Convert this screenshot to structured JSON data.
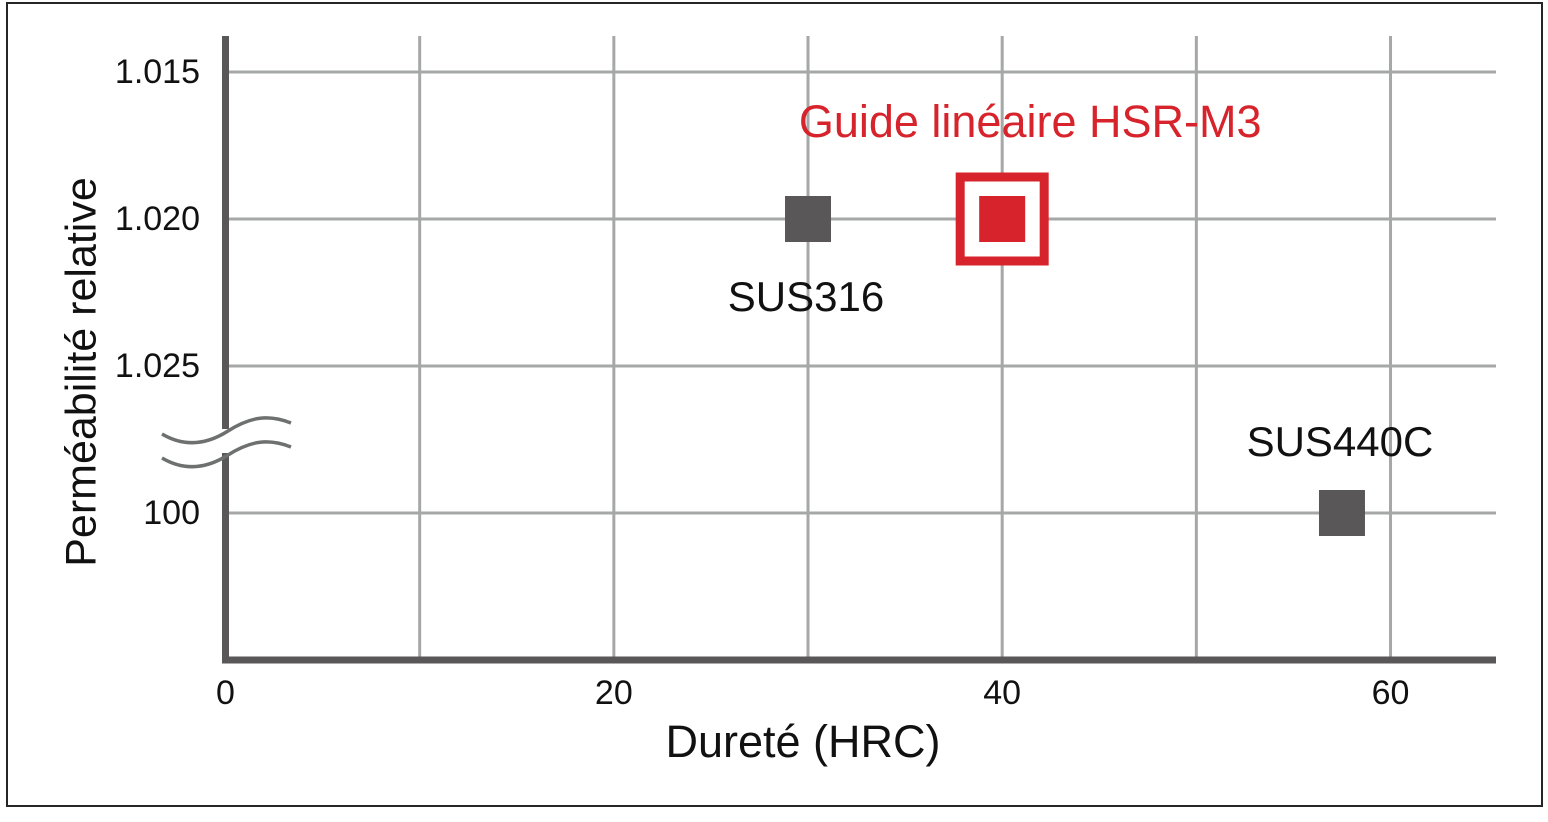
{
  "figure": {
    "background": "#ffffff",
    "border_color": "#262626"
  },
  "chart_data": {
    "type": "scatter",
    "title": "",
    "xlabel": "Dureté (HRC)",
    "ylabel": "Perméabilité relative",
    "x_axis": {
      "labeled_ticks": [
        0,
        20,
        40,
        60
      ],
      "gridline_step": 10,
      "min": 0,
      "max_visible": 65.5
    },
    "y_axis": {
      "ticks": [
        "1.015",
        "1.020",
        "1.025",
        "100"
      ],
      "axis_break_between": [
        "1.025",
        "100"
      ],
      "direction": "values increase downward"
    },
    "grid": true,
    "legend": "none",
    "points": [
      {
        "label": "SUS316",
        "x": 30,
        "y": "1.020",
        "highlighted": false,
        "label_position": "below"
      },
      {
        "label": "Guide linéaire HSR-M3",
        "x": 40,
        "y": "1.020",
        "highlighted": true,
        "label_position": "title-above"
      },
      {
        "label": "SUS440C",
        "x": 57.5,
        "y": "100",
        "highlighted": false,
        "label_position": "above"
      }
    ],
    "colors": {
      "marker": "#595757",
      "highlight": "#d7232b",
      "gridline": "#a6a7a7",
      "axis": "#595757",
      "break_wave": "#6e6f6f",
      "text": "#111111"
    }
  }
}
